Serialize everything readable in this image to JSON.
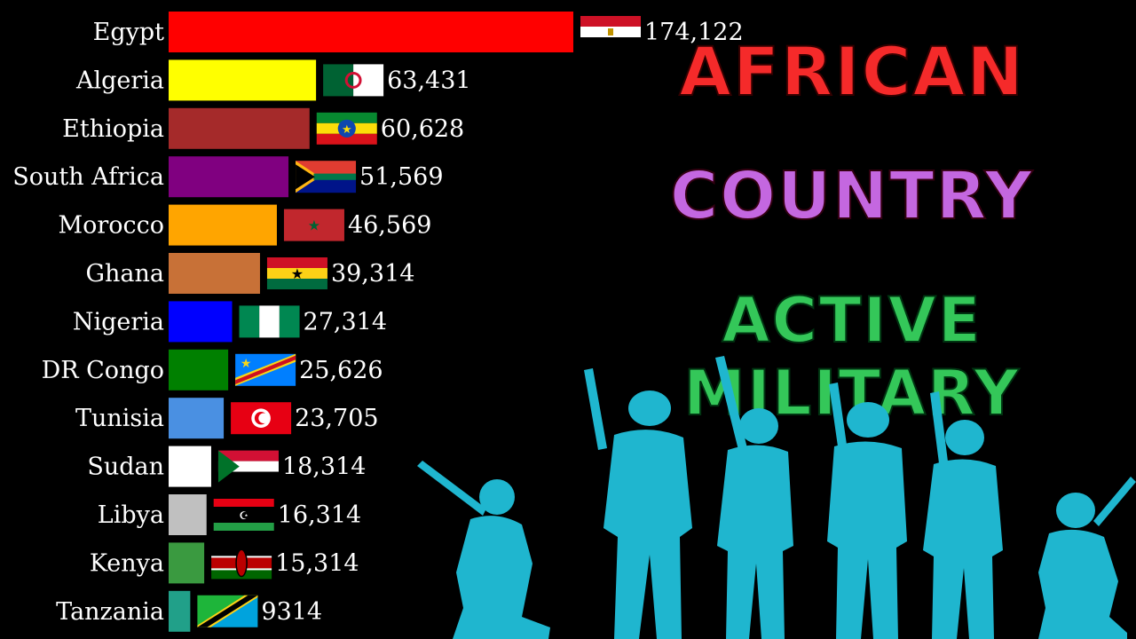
{
  "headline": {
    "line1": "AFRICAN",
    "line2": "COUNTRY",
    "line3": "ACTIVE MILITARY",
    "colors": {
      "line1": "#f52a2a",
      "line2": "#c467e0",
      "line3": "#34c759"
    }
  },
  "illustration": {
    "name": "soldier-silhouettes",
    "color": "#1fb6cf"
  },
  "chart_data": {
    "type": "bar",
    "orientation": "horizontal",
    "categories": [
      "Egypt",
      "Algeria",
      "Ethiopia",
      "South Africa",
      "Morocco",
      "Ghana",
      "Nigeria",
      "DR Congo",
      "Tunisia",
      "Sudan",
      "Libya",
      "Kenya",
      "Tanzania"
    ],
    "values": [
      174122,
      63431,
      60628,
      51569,
      46569,
      39314,
      27314,
      25626,
      23705,
      18314,
      16314,
      15314,
      9314
    ],
    "value_labels": [
      "174,122",
      "63,431",
      "60,628",
      "51,569",
      "46,569",
      "39,314",
      "27,314",
      "25,626",
      "23,705",
      "18,314",
      "16,314",
      "15,314",
      "9314"
    ],
    "colors": [
      "#ff0000",
      "#ffff00",
      "#a52a2a",
      "#800080",
      "#ffa500",
      "#c87137",
      "#0000ff",
      "#008000",
      "#4a90e2",
      "#ffffff",
      "#c0c0c0",
      "#3a9a40",
      "#21a089"
    ],
    "flags": [
      "egypt-flag",
      "algeria-flag",
      "ethiopia-flag",
      "south-africa-flag",
      "morocco-flag",
      "ghana-flag",
      "nigeria-flag",
      "dr-congo-flag",
      "tunisia-flag",
      "sudan-flag",
      "libya-flag",
      "kenya-flag",
      "tanzania-flag"
    ],
    "title": "",
    "xlabel": "",
    "ylabel": "",
    "grid": false,
    "legend": "none"
  }
}
